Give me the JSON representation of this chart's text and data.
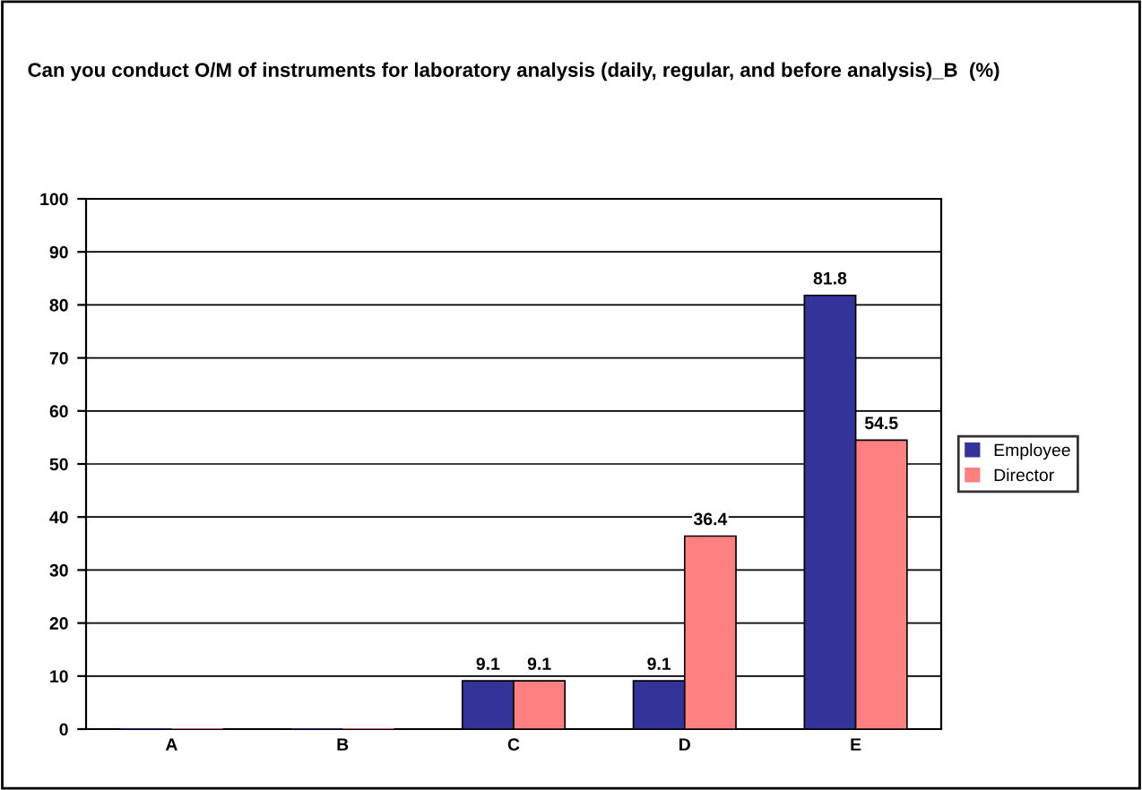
{
  "chart_data": {
    "type": "bar",
    "title": "Can you conduct O/M of instruments for laboratory analysis (daily, regular, and before analysis)_B  (%)",
    "categories": [
      "A",
      "B",
      "C",
      "D",
      "E"
    ],
    "series": [
      {
        "name": "Employee",
        "color": "#333399",
        "values": [
          0,
          0,
          9.1,
          9.1,
          81.8
        ],
        "value_labels": [
          null,
          null,
          "9.1",
          "9.1",
          "81.8"
        ]
      },
      {
        "name": "Director",
        "color": "#ff8080",
        "values": [
          0,
          0,
          9.1,
          36.4,
          54.5
        ],
        "value_labels": [
          null,
          null,
          "9.1",
          "36.4",
          "54.5"
        ]
      }
    ],
    "ylim": [
      0,
      100
    ],
    "yticks": [
      0,
      10,
      20,
      30,
      40,
      50,
      60,
      70,
      80,
      90,
      100
    ],
    "grid": "y",
    "legend": "right"
  }
}
